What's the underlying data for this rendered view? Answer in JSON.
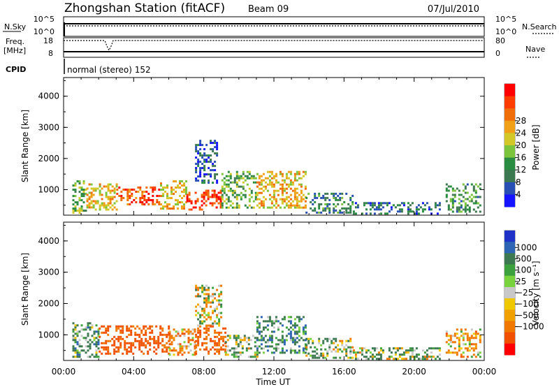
{
  "header": {
    "station": "Zhongshan Station (fitACF)",
    "beam": "Beam 09",
    "date": "07/Jul/2010"
  },
  "status_panels": {
    "nsky_label": "N.Sky",
    "nsearch_label": "N.Search",
    "freq_label_line1": "Freq.",
    "freq_label_line2": "[MHz]",
    "nave_label": "Nave",
    "cpid_label": "CPID",
    "cpid_value": "normal (stereo) 152",
    "noise_ticks": [
      "10^5",
      "10^0"
    ],
    "freq_ticks": [
      "18",
      "8"
    ],
    "nave_ticks": [
      "80",
      "0"
    ]
  },
  "chart_data": [
    {
      "type": "heatmap",
      "panel": "power",
      "title": "",
      "xlabel": "",
      "ylabel": "Slant Range [km]",
      "xlim": [
        0,
        24
      ],
      "ylim": [
        180,
        4600
      ],
      "y_ticks": [
        "1000",
        "2000",
        "3000",
        "4000"
      ],
      "colorbar": {
        "label": "Power [dB]",
        "ticks": [
          "4",
          "8",
          "12",
          "16",
          "20",
          "24",
          "28"
        ],
        "colors": [
          "#1414ff",
          "#2850b4",
          "#3c7850",
          "#2a8c40",
          "#7cc43c",
          "#d2c828",
          "#f0a016",
          "#f06e0a",
          "#ff3c00",
          "#ff0000"
        ],
        "range": [
          0,
          30
        ]
      },
      "regions": [
        {
          "x": [
            0.5,
            1.3
          ],
          "y": [
            250,
            1300
          ],
          "value": 13
        },
        {
          "x": [
            1.3,
            3.0
          ],
          "y": [
            350,
            1200
          ],
          "value": 18
        },
        {
          "x": [
            3.0,
            5.5
          ],
          "y": [
            500,
            1100
          ],
          "value": 25
        },
        {
          "x": [
            5.5,
            7.0
          ],
          "y": [
            400,
            1300
          ],
          "value": 17
        },
        {
          "x": [
            7.0,
            9.0
          ],
          "y": [
            350,
            1000
          ],
          "value": 26
        },
        {
          "x": [
            7.5,
            8.8
          ],
          "y": [
            1200,
            2600
          ],
          "value": 5
        },
        {
          "x": [
            9.0,
            11.0
          ],
          "y": [
            450,
            1600
          ],
          "value": 12
        },
        {
          "x": [
            11.0,
            13.8
          ],
          "y": [
            450,
            1600
          ],
          "value": 18
        },
        {
          "x": [
            13.8,
            16.5
          ],
          "y": [
            250,
            900
          ],
          "value": 8
        },
        {
          "x": [
            16.5,
            21.5
          ],
          "y": [
            250,
            600
          ],
          "value": 7
        },
        {
          "x": [
            21.8,
            23.8
          ],
          "y": [
            300,
            1200
          ],
          "value": 10
        }
      ]
    },
    {
      "type": "heatmap",
      "panel": "velocity",
      "title": "",
      "xlabel": "Time UT",
      "ylabel": "Slant Range [km]",
      "xlim": [
        0,
        24
      ],
      "ylim": [
        180,
        4600
      ],
      "x_ticks": [
        "00:00",
        "04:00",
        "08:00",
        "12:00",
        "16:00",
        "20:00",
        "00:00"
      ],
      "y_ticks": [
        "1000",
        "2000",
        "3000",
        "4000"
      ],
      "colorbar": {
        "label": "Velocity [m s⁻¹]",
        "ticks": [
          "1000",
          "500",
          "100",
          "25",
          "−25",
          "−100",
          "−500",
          "−1000"
        ],
        "colors": [
          "#1e32c8",
          "#2d64b4",
          "#3c7850",
          "#3ca03c",
          "#78d23c",
          "#c8c8c8",
          "#f0c800",
          "#f0a000",
          "#f07800",
          "#f05000",
          "#ff0000"
        ]
      },
      "regions": [
        {
          "x": [
            0.5,
            2.0
          ],
          "y": [
            300,
            1400
          ],
          "value": 150
        },
        {
          "x": [
            2.0,
            6.0
          ],
          "y": [
            400,
            1300
          ],
          "value": -400
        },
        {
          "x": [
            6.0,
            7.5
          ],
          "y": [
            350,
            1200
          ],
          "value": -150
        },
        {
          "x": [
            7.5,
            9.0
          ],
          "y": [
            1300,
            2600
          ],
          "value": 10
        },
        {
          "x": [
            7.5,
            9.2
          ],
          "y": [
            400,
            1300
          ],
          "value": -300
        },
        {
          "x": [
            9.2,
            11.0
          ],
          "y": [
            300,
            1000
          ],
          "value": 80
        },
        {
          "x": [
            11.0,
            13.8
          ],
          "y": [
            400,
            1600
          ],
          "value": 200
        },
        {
          "x": [
            13.8,
            16.5
          ],
          "y": [
            250,
            900
          ],
          "value": 60
        },
        {
          "x": [
            16.5,
            21.5
          ],
          "y": [
            250,
            600
          ],
          "value": 60
        },
        {
          "x": [
            21.8,
            23.8
          ],
          "y": [
            300,
            1200
          ],
          "value": -120
        }
      ]
    }
  ]
}
